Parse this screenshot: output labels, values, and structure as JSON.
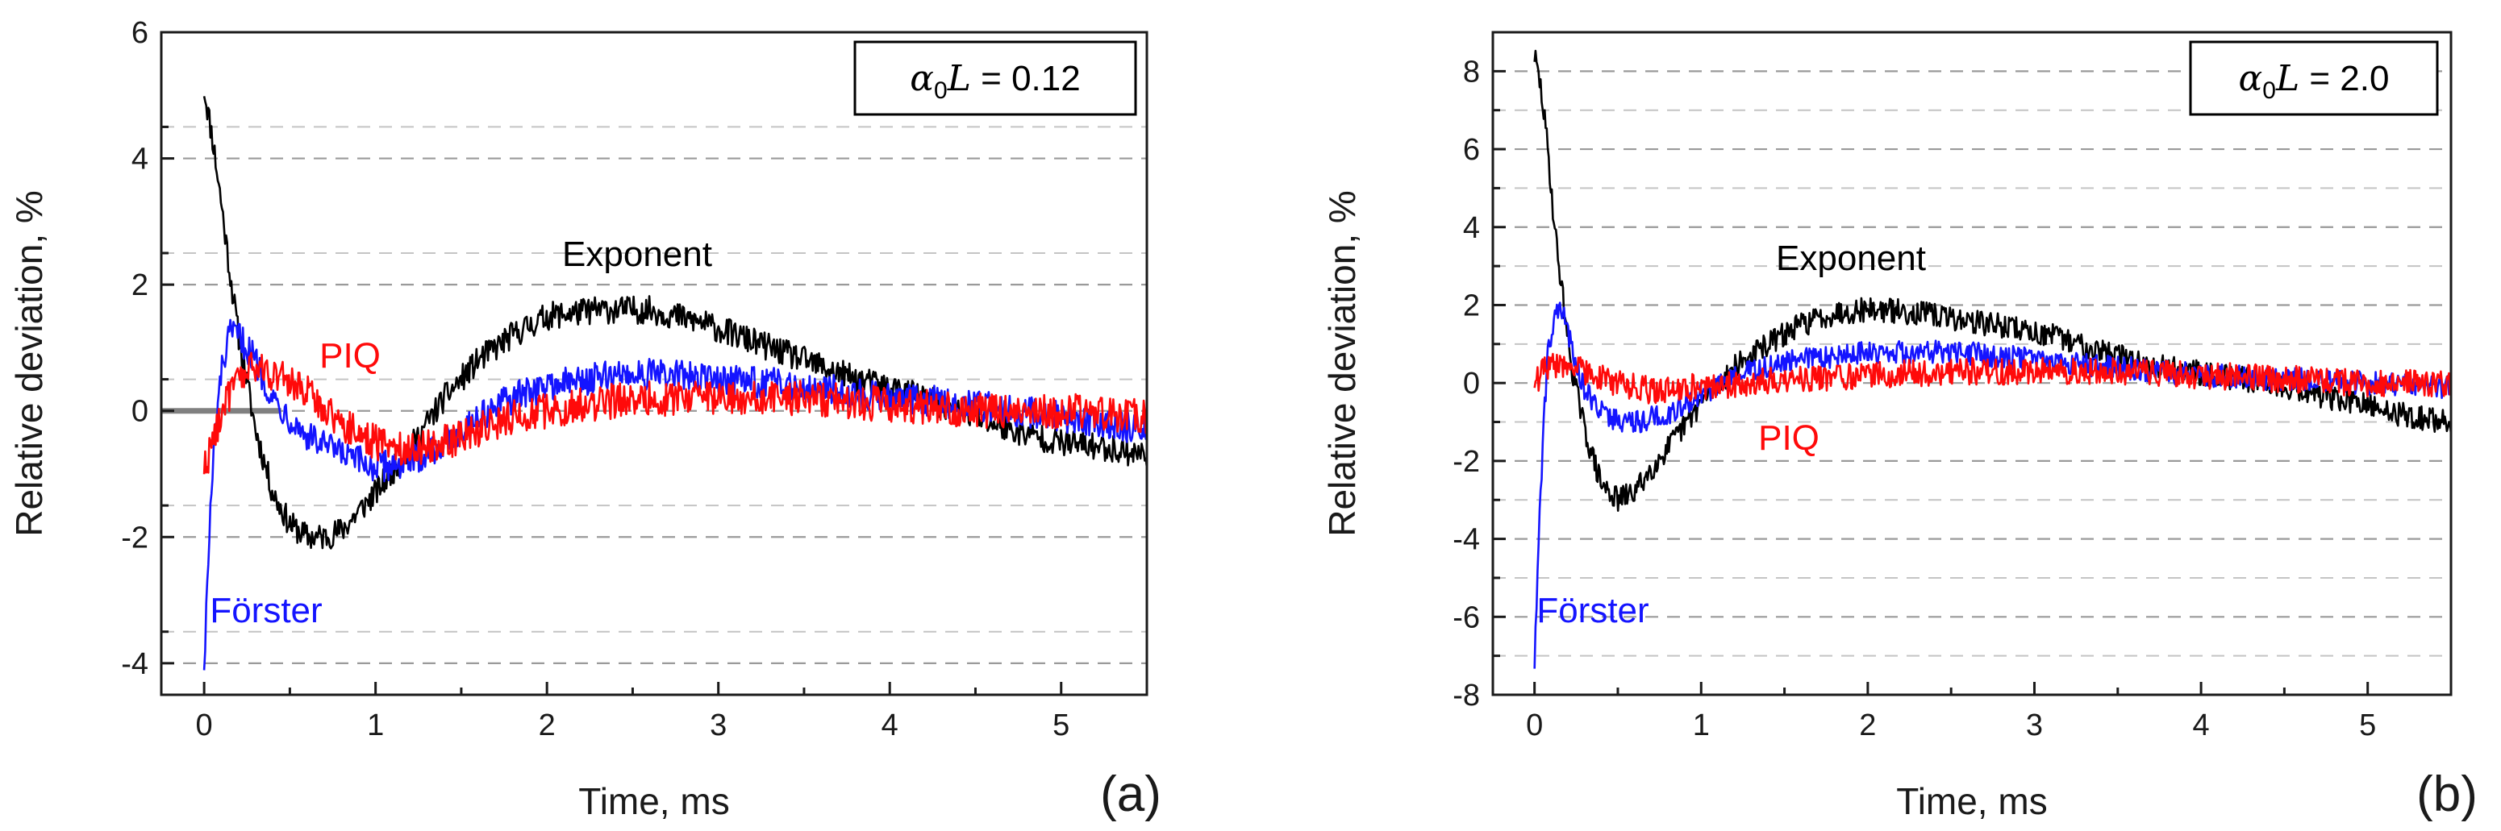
{
  "colors": {
    "exponent": "#000000",
    "forster": "#1414ff",
    "piq": "#ff0a0a",
    "grid": "#9a9a9a",
    "reference_line": "#808080"
  },
  "chart_data": [
    {
      "type": "line",
      "panel": "(a)",
      "param_symbol": "α",
      "param_subscript": "0",
      "param_L": "L",
      "param_value": " = 0.12",
      "xlabel": "Time, ms",
      "ylabel": "Relative deviation, %",
      "xlim": [
        -0.25,
        5.5
      ],
      "ylim": [
        -4.5,
        6
      ],
      "xticks": [
        "0",
        "1",
        "2",
        "3",
        "4",
        "5"
      ],
      "yticks": [
        "-4",
        "-2",
        "0",
        "2",
        "4",
        "6"
      ],
      "grid": "dashed horizontal",
      "labels": {
        "exponent": "Exponent",
        "piq": "PIQ",
        "forster": "Förster"
      },
      "series": [
        {
          "name": "Exponent",
          "color_key": "exponent",
          "noise": 0.22,
          "points": [
            [
              0,
              5.1
            ],
            [
              0.05,
              4.3
            ],
            [
              0.1,
              3.3
            ],
            [
              0.15,
              2.2
            ],
            [
              0.2,
              1.2
            ],
            [
              0.3,
              -0.3
            ],
            [
              0.4,
              -1.3
            ],
            [
              0.5,
              -1.8
            ],
            [
              0.6,
              -2.0
            ],
            [
              0.7,
              -2.0
            ],
            [
              0.8,
              -1.9
            ],
            [
              1.0,
              -1.3
            ],
            [
              1.2,
              -0.6
            ],
            [
              1.4,
              0.2
            ],
            [
              1.6,
              0.8
            ],
            [
              1.8,
              1.2
            ],
            [
              2.0,
              1.5
            ],
            [
              2.3,
              1.6
            ],
            [
              2.6,
              1.6
            ],
            [
              2.9,
              1.4
            ],
            [
              3.2,
              1.1
            ],
            [
              3.5,
              0.8
            ],
            [
              3.8,
              0.5
            ],
            [
              4.1,
              0.3
            ],
            [
              4.4,
              0.0
            ],
            [
              4.7,
              -0.3
            ],
            [
              5.0,
              -0.5
            ],
            [
              5.3,
              -0.6
            ],
            [
              5.5,
              -0.7
            ]
          ]
        },
        {
          "name": "Förster",
          "color_key": "forster",
          "noise": 0.25,
          "points": [
            [
              0,
              -4.0
            ],
            [
              0.03,
              -2.0
            ],
            [
              0.06,
              -0.5
            ],
            [
              0.1,
              0.6
            ],
            [
              0.15,
              1.2
            ],
            [
              0.2,
              1.2
            ],
            [
              0.3,
              0.8
            ],
            [
              0.4,
              0.2
            ],
            [
              0.6,
              -0.4
            ],
            [
              0.8,
              -0.7
            ],
            [
              1.0,
              -0.9
            ],
            [
              1.2,
              -0.8
            ],
            [
              1.4,
              -0.5
            ],
            [
              1.6,
              -0.1
            ],
            [
              1.8,
              0.2
            ],
            [
              2.0,
              0.4
            ],
            [
              2.5,
              0.6
            ],
            [
              3.0,
              0.5
            ],
            [
              3.5,
              0.4
            ],
            [
              4.0,
              0.2
            ],
            [
              4.5,
              0.1
            ],
            [
              5.0,
              -0.1
            ],
            [
              5.5,
              -0.3
            ]
          ]
        },
        {
          "name": "PIQ",
          "color_key": "piq",
          "noise": 0.28,
          "points": [
            [
              0,
              -0.9
            ],
            [
              0.05,
              -0.5
            ],
            [
              0.1,
              0.0
            ],
            [
              0.2,
              0.5
            ],
            [
              0.3,
              0.7
            ],
            [
              0.4,
              0.6
            ],
            [
              0.6,
              0.3
            ],
            [
              0.8,
              -0.2
            ],
            [
              1.0,
              -0.5
            ],
            [
              1.2,
              -0.6
            ],
            [
              1.4,
              -0.5
            ],
            [
              1.6,
              -0.3
            ],
            [
              1.8,
              -0.1
            ],
            [
              2.0,
              0.0
            ],
            [
              2.5,
              0.2
            ],
            [
              3.0,
              0.2
            ],
            [
              3.5,
              0.2
            ],
            [
              4.0,
              0.1
            ],
            [
              4.5,
              0.0
            ],
            [
              5.0,
              0.0
            ],
            [
              5.5,
              -0.1
            ]
          ]
        }
      ],
      "reference_segment": {
        "x": [
          -0.25,
          0.45
        ],
        "y": 0
      }
    },
    {
      "type": "line",
      "panel": "(b)",
      "param_symbol": "α",
      "param_subscript": "0",
      "param_L": "L",
      "param_value": " = 2.0",
      "xlabel": "Time, ms",
      "ylabel": "Relative deviation, %",
      "xlim": [
        -0.25,
        5.5
      ],
      "ylim": [
        -8,
        9
      ],
      "xticks": [
        "0",
        "1",
        "2",
        "3",
        "4",
        "5"
      ],
      "yticks": [
        "-8",
        "-6",
        "-4",
        "-2",
        "0",
        "2",
        "4",
        "6",
        "8"
      ],
      "grid": "dashed horizontal",
      "labels": {
        "exponent": "Exponent",
        "piq": "PIQ",
        "forster": "Förster"
      },
      "series": [
        {
          "name": "Exponent",
          "color_key": "exponent",
          "noise": 0.32,
          "points": [
            [
              0,
              8.4
            ],
            [
              0.04,
              7.5
            ],
            [
              0.08,
              6.0
            ],
            [
              0.12,
              4.0
            ],
            [
              0.17,
              2.2
            ],
            [
              0.22,
              0.5
            ],
            [
              0.3,
              -1.2
            ],
            [
              0.4,
              -2.6
            ],
            [
              0.5,
              -3.0
            ],
            [
              0.6,
              -2.8
            ],
            [
              0.7,
              -2.2
            ],
            [
              0.85,
              -1.4
            ],
            [
              1.0,
              -0.5
            ],
            [
              1.2,
              0.4
            ],
            [
              1.4,
              1.0
            ],
            [
              1.6,
              1.5
            ],
            [
              1.8,
              1.8
            ],
            [
              2.0,
              1.9
            ],
            [
              2.3,
              1.8
            ],
            [
              2.6,
              1.6
            ],
            [
              2.9,
              1.4
            ],
            [
              3.2,
              1.1
            ],
            [
              3.5,
              0.7
            ],
            [
              3.8,
              0.4
            ],
            [
              4.1,
              0.2
            ],
            [
              4.4,
              0.0
            ],
            [
              4.7,
              -0.3
            ],
            [
              5.0,
              -0.6
            ],
            [
              5.3,
              -0.9
            ],
            [
              5.5,
              -1.0
            ]
          ]
        },
        {
          "name": "Förster",
          "color_key": "forster",
          "noise": 0.3,
          "points": [
            [
              0,
              -7.2
            ],
            [
              0.02,
              -4.5
            ],
            [
              0.05,
              -1.5
            ],
            [
              0.08,
              0.8
            ],
            [
              0.12,
              1.8
            ],
            [
              0.17,
              1.8
            ],
            [
              0.22,
              1.0
            ],
            [
              0.3,
              -0.2
            ],
            [
              0.45,
              -0.9
            ],
            [
              0.6,
              -1.0
            ],
            [
              0.8,
              -0.8
            ],
            [
              1.0,
              -0.3
            ],
            [
              1.3,
              0.3
            ],
            [
              1.6,
              0.6
            ],
            [
              2.0,
              0.8
            ],
            [
              2.5,
              0.8
            ],
            [
              3.0,
              0.6
            ],
            [
              3.5,
              0.4
            ],
            [
              4.0,
              0.2
            ],
            [
              4.5,
              0.1
            ],
            [
              5.0,
              0.0
            ],
            [
              5.5,
              -0.1
            ]
          ]
        },
        {
          "name": "PIQ",
          "color_key": "piq",
          "noise": 0.35,
          "points": [
            [
              0,
              0.0
            ],
            [
              0.05,
              0.3
            ],
            [
              0.15,
              0.5
            ],
            [
              0.3,
              0.3
            ],
            [
              0.5,
              0.0
            ],
            [
              0.7,
              -0.2
            ],
            [
              1.0,
              -0.1
            ],
            [
              1.5,
              0.1
            ],
            [
              2.0,
              0.2
            ],
            [
              2.5,
              0.3
            ],
            [
              3.0,
              0.3
            ],
            [
              3.5,
              0.3
            ],
            [
              4.0,
              0.2
            ],
            [
              4.5,
              0.1
            ],
            [
              5.0,
              0.0
            ],
            [
              5.5,
              0.0
            ]
          ]
        }
      ],
      "reference_segment": null
    }
  ]
}
